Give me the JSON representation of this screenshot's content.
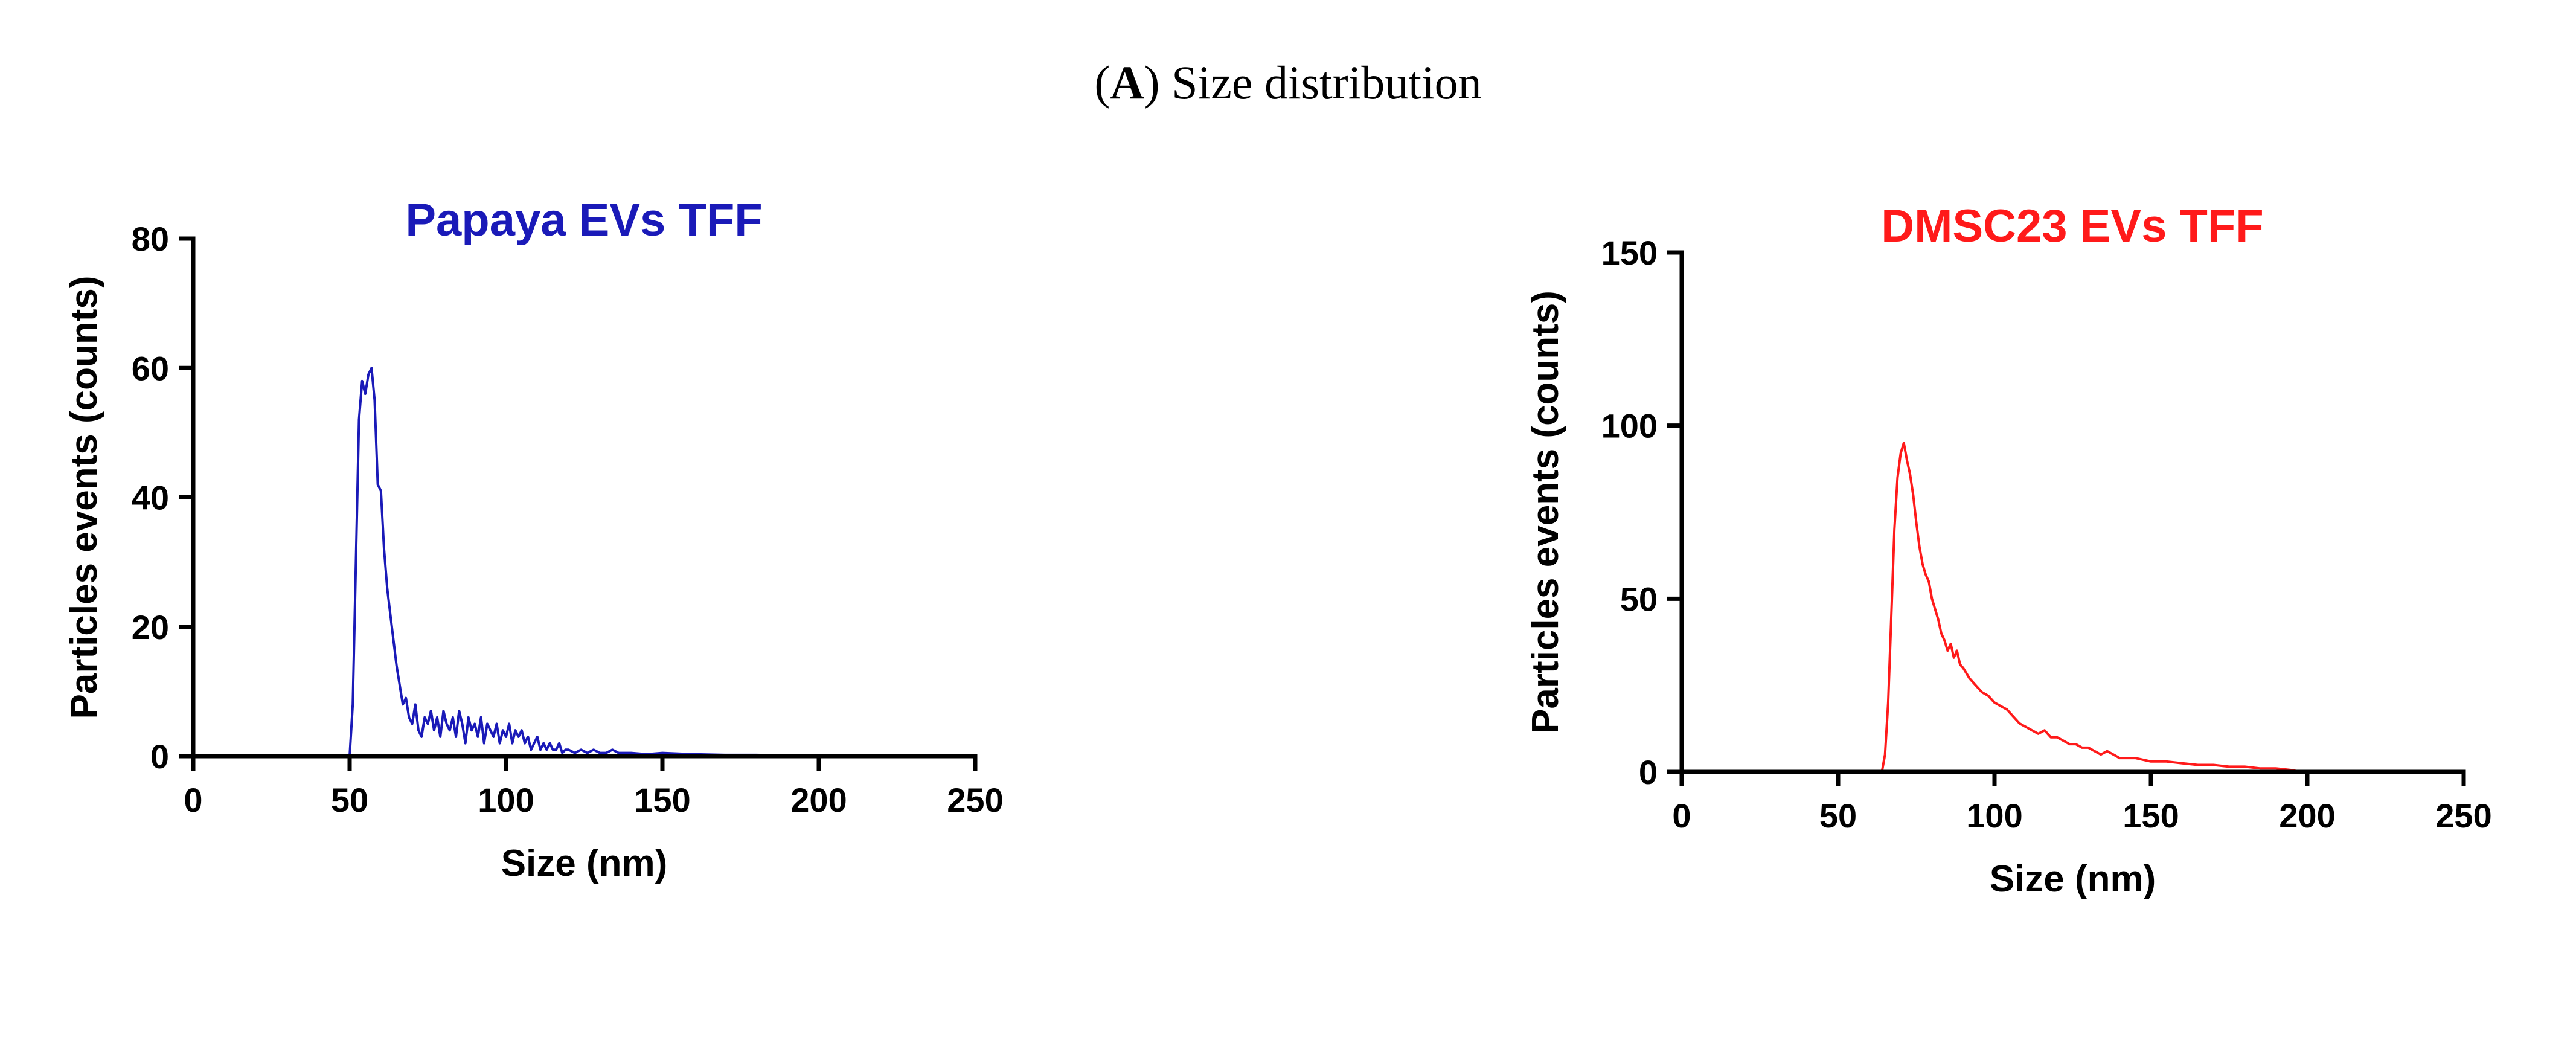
{
  "figure": {
    "panel_letter": "A",
    "title_text": "Size distribution"
  },
  "chart_data": [
    {
      "type": "line",
      "title": "Papaya EVs TFF",
      "xlabel": "Size (nm)",
      "ylabel": "Particles events (counts)",
      "xlim": [
        0,
        250
      ],
      "ylim": [
        0,
        80
      ],
      "x_ticks": [
        0,
        50,
        100,
        150,
        200,
        250
      ],
      "y_ticks": [
        0,
        20,
        40,
        60,
        80
      ],
      "color": "#1a1ab8",
      "grid": false,
      "x": [
        0,
        50,
        51,
        52,
        53,
        54,
        55,
        56,
        57,
        58,
        59,
        60,
        61,
        62,
        63,
        64,
        65,
        66,
        67,
        68,
        69,
        70,
        71,
        72,
        73,
        74,
        75,
        76,
        77,
        78,
        79,
        80,
        81,
        82,
        83,
        84,
        85,
        86,
        87,
        88,
        89,
        90,
        91,
        92,
        93,
        94,
        95,
        96,
        97,
        98,
        99,
        100,
        101,
        102,
        103,
        104,
        105,
        106,
        107,
        108,
        109,
        110,
        111,
        112,
        113,
        114,
        115,
        116,
        117,
        118,
        119,
        120,
        122,
        124,
        126,
        128,
        130,
        132,
        134,
        136,
        138,
        140,
        145,
        150,
        160,
        170,
        180,
        190,
        200
      ],
      "y": [
        0,
        0,
        8,
        30,
        52,
        58,
        56,
        59,
        60,
        55,
        42,
        41,
        32,
        26,
        22,
        18,
        14,
        11,
        8,
        9,
        6,
        5,
        8,
        4,
        3,
        6,
        5,
        7,
        4,
        6,
        3,
        7,
        5,
        4,
        6,
        3,
        7,
        5,
        2,
        6,
        4,
        5,
        3,
        6,
        2,
        5,
        4,
        3,
        5,
        2,
        4,
        3,
        5,
        2,
        4,
        3,
        4,
        2,
        3,
        1,
        2,
        3,
        1,
        2,
        1,
        2,
        1,
        1,
        2,
        0.5,
        1,
        1,
        0.5,
        1,
        0.5,
        1,
        0.5,
        0.5,
        1,
        0.5,
        0.5,
        0.5,
        0.3,
        0.5,
        0.3,
        0.2,
        0.2,
        0.1,
        0
      ]
    },
    {
      "type": "line",
      "title": "DMSC23 EVs TFF",
      "xlabel": "Size (nm)",
      "ylabel": "Particles events (counts)",
      "xlim": [
        0,
        250
      ],
      "ylim": [
        0,
        150
      ],
      "x_ticks": [
        0,
        50,
        100,
        150,
        200,
        250
      ],
      "y_ticks": [
        0,
        50,
        100,
        150
      ],
      "color": "#ff1a1a",
      "grid": false,
      "x": [
        0,
        60,
        64,
        65,
        66,
        67,
        68,
        69,
        70,
        71,
        72,
        73,
        74,
        75,
        76,
        77,
        78,
        79,
        80,
        81,
        82,
        83,
        84,
        85,
        86,
        87,
        88,
        89,
        90,
        92,
        94,
        96,
        98,
        100,
        102,
        104,
        106,
        108,
        110,
        112,
        114,
        116,
        118,
        120,
        122,
        124,
        126,
        128,
        130,
        132,
        134,
        136,
        138,
        140,
        145,
        150,
        155,
        160,
        165,
        170,
        175,
        180,
        185,
        190,
        195,
        198
      ],
      "y": [
        0,
        0,
        0,
        5,
        20,
        45,
        70,
        85,
        92,
        95,
        90,
        86,
        80,
        72,
        65,
        60,
        57,
        55,
        50,
        47,
        44,
        40,
        38,
        35,
        37,
        33,
        35,
        31,
        30,
        27,
        25,
        23,
        22,
        20,
        19,
        18,
        16,
        14,
        13,
        12,
        11,
        12,
        10,
        10,
        9,
        8,
        8,
        7,
        7,
        6,
        5,
        6,
        5,
        4,
        4,
        3,
        3,
        2.5,
        2,
        2,
        1.5,
        1.5,
        1,
        1,
        0.5,
        0
      ]
    }
  ]
}
